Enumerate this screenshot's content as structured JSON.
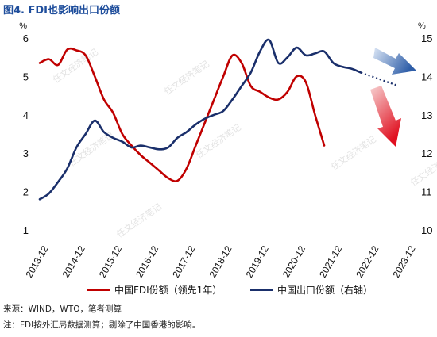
{
  "title": "图4. FDI也影响出口份额",
  "watermark": "任文经济笔记",
  "chart_data": {
    "type": "line",
    "x": [
      "2013-12",
      "2014-03",
      "2014-06",
      "2014-09",
      "2014-12",
      "2015-03",
      "2015-06",
      "2015-09",
      "2015-12",
      "2016-03",
      "2016-06",
      "2016-09",
      "2016-12",
      "2017-03",
      "2017-06",
      "2017-09",
      "2017-12",
      "2018-03",
      "2018-06",
      "2018-09",
      "2018-12",
      "2019-03",
      "2019-06",
      "2019-09",
      "2019-12",
      "2020-03",
      "2020-06",
      "2020-09",
      "2020-12",
      "2021-03",
      "2021-06",
      "2021-09",
      "2021-12",
      "2022-03",
      "2022-06",
      "2022-09",
      "2022-12",
      "2023-03",
      "2023-06",
      "2023-09",
      "2023-12"
    ],
    "x_tick_labels": [
      "2013-12",
      "2014-12",
      "2015-12",
      "2016-12",
      "2017-12",
      "2018-12",
      "2019-12",
      "2020-12",
      "2021-12",
      "2022-12",
      "2023-12"
    ],
    "y_left": {
      "ticks": [
        1,
        2,
        3,
        4,
        5,
        6
      ],
      "range": [
        1,
        6
      ],
      "unit": "%"
    },
    "y_right": {
      "ticks": [
        10,
        11,
        12,
        13,
        14,
        15
      ],
      "range": [
        10,
        15
      ],
      "unit": "%"
    },
    "series": [
      {
        "name": "中国FDI份额（领先1年）",
        "axis": "left",
        "color": "#c00000",
        "values": [
          5.35,
          5.45,
          5.3,
          5.7,
          5.68,
          5.55,
          5.0,
          4.4,
          4.05,
          3.5,
          3.2,
          2.95,
          2.75,
          2.55,
          2.35,
          2.28,
          2.6,
          3.2,
          3.8,
          4.4,
          5.0,
          5.55,
          5.35,
          4.75,
          4.6,
          4.45,
          4.4,
          4.6,
          5.0,
          4.85,
          4.0,
          3.2,
          null,
          null,
          null,
          null,
          null,
          null,
          null,
          null,
          null
        ]
      },
      {
        "name": "中国出口份额（右轴）",
        "axis": "right",
        "color": "#1a2f6b",
        "values": [
          10.8,
          10.95,
          11.25,
          11.6,
          12.15,
          12.5,
          12.85,
          12.55,
          12.4,
          12.3,
          12.15,
          12.2,
          12.15,
          12.1,
          12.15,
          12.4,
          12.55,
          12.75,
          12.9,
          13.0,
          13.1,
          13.4,
          13.75,
          14.1,
          14.65,
          14.95,
          14.35,
          14.5,
          14.75,
          14.55,
          14.6,
          14.65,
          14.35,
          14.25,
          14.2,
          14.1,
          null,
          null,
          null,
          null,
          null
        ]
      }
    ],
    "legend_position": "bottom",
    "grid": false
  },
  "legend": {
    "fdi": "中国FDI份额（领先1年）",
    "export": "中国出口份额（右轴）"
  },
  "axis_units": {
    "left": "%",
    "right": "%"
  },
  "source": "来源：WIND，WTO，笔者测算",
  "note": "注：FDI按外汇局数据测算；剔除了中国香港的影响。"
}
